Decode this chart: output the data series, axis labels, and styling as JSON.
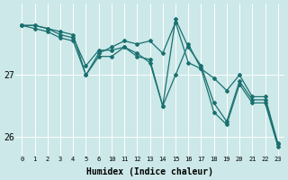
{
  "xlabel": "Humidex (Indice chaleur)",
  "bg_color": "#cce8e8",
  "line_color": "#1a7070",
  "grid_color": "#ffffff",
  "x_labels": [
    "0",
    "1",
    "2",
    "3",
    "4",
    "5",
    "6",
    "10",
    "11",
    "12",
    "13",
    "14",
    "15",
    "16",
    "17",
    "18",
    "19",
    "20",
    "21",
    "22",
    "23"
  ],
  "ylim": [
    25.7,
    28.15
  ],
  "yticks": [
    26,
    27
  ],
  "series1_y": [
    27.8,
    27.8,
    27.75,
    27.7,
    27.65,
    27.0,
    27.35,
    27.45,
    27.55,
    27.5,
    27.55,
    27.35,
    27.85,
    27.2,
    27.1,
    26.95,
    26.75,
    27.0,
    26.65,
    26.65,
    25.9
  ],
  "series2_y": [
    27.8,
    27.8,
    27.75,
    27.65,
    27.6,
    27.15,
    27.4,
    27.4,
    27.45,
    27.35,
    27.2,
    26.5,
    27.9,
    27.45,
    27.15,
    26.55,
    26.25,
    26.9,
    26.6,
    26.6,
    25.88
  ],
  "series3_y": [
    27.8,
    27.75,
    27.7,
    27.6,
    27.55,
    27.0,
    27.3,
    27.3,
    27.45,
    27.3,
    27.25,
    26.5,
    27.0,
    27.5,
    27.1,
    26.4,
    26.2,
    26.85,
    26.55,
    26.55,
    25.85
  ]
}
